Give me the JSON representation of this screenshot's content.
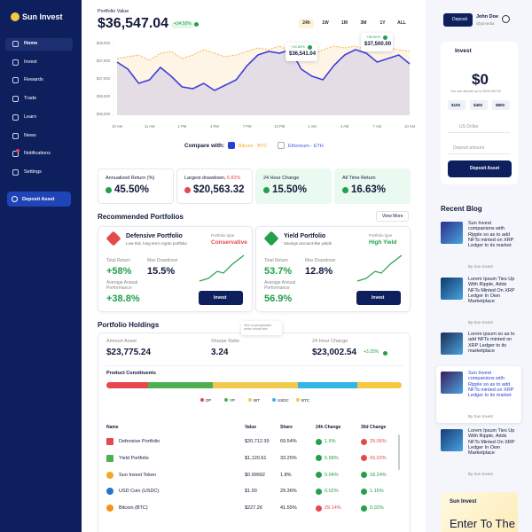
{
  "sidebar": {
    "logo": "Sun Invest",
    "nav": [
      "Home",
      "Invest",
      "Rewards",
      "Trade",
      "Learn",
      "News",
      "Notifications",
      "Settings"
    ],
    "active": 0,
    "deposit_button": "Deposit Asset"
  },
  "header": {
    "label": "Portfolio Value",
    "value": "$36,547.04",
    "change": "+34.50%",
    "ranges": [
      "24h",
      "1W",
      "1M",
      "3M",
      "1Y",
      "ALL"
    ],
    "active_range": 0
  },
  "portfolio_chart": {
    "type": "line",
    "categories": [
      "10 AM",
      null,
      null,
      "11 AM",
      null,
      null,
      "1 PM",
      null,
      null,
      "4 PM",
      null,
      null,
      "7 PM",
      null,
      null,
      "10 PM",
      null,
      null,
      "1 AM",
      null,
      null,
      "4 AM",
      null,
      null,
      "7 AM",
      null,
      null,
      "10 AM"
    ],
    "series": [
      {
        "color": "#f5b547",
        "values": [
          37600,
          37650,
          37700,
          37550,
          37750,
          37800,
          37600,
          37700,
          37850,
          37750,
          37650,
          37700,
          37800,
          37900,
          37850,
          37950,
          37800,
          37750,
          37700,
          37850,
          37950,
          37900,
          37950,
          37850,
          37800,
          37900,
          37850,
          37800
        ]
      },
      {
        "color": "#3d3fd9",
        "values": [
          37500,
          37300,
          36900,
          37000,
          37350,
          37100,
          36800,
          36750,
          36900,
          36700,
          36850,
          37000,
          37400,
          37700,
          37800,
          37750,
          37850,
          37300,
          37100,
          37000,
          37400,
          37700,
          37850,
          37750,
          37500,
          37600,
          37700,
          37450
        ]
      }
    ],
    "ylim": [
      36000,
      38000
    ],
    "yticks": [
      {
        "value": 36000,
        "label": "$36,000"
      },
      {
        "value": 36500,
        "label": "$36,500"
      },
      {
        "value": 37000,
        "label": "$37,000"
      },
      {
        "value": 37500,
        "label": "$37,500"
      },
      {
        "value": 38000,
        "label": "$38,000"
      }
    ],
    "annotations": [
      {
        "change": "+24.80%",
        "value": "$36,541.04"
      },
      {
        "change": "+36.50%",
        "value": "$37,500.00"
      }
    ]
  },
  "compare": {
    "label": "Compare with:",
    "options": [
      {
        "label": "Bitcoin - BTC",
        "checked": true,
        "color": "#f5a623"
      },
      {
        "label": "Ethereum - ETH",
        "checked": false,
        "color": "#3d5bd9"
      }
    ]
  },
  "stats": [
    {
      "label": "Annualized Return (%)",
      "value": "45.50%",
      "trend": "up"
    },
    {
      "label": "Largest drawdown, ",
      "highlight": "-5.82%",
      "value": "$20,563.32",
      "trend": "down"
    },
    {
      "label": "24 Hour Change",
      "value": "15.50%",
      "trend": "up"
    },
    {
      "label": "All Time Return",
      "value": "16.63%",
      "trend": "up"
    }
  ],
  "recommended": {
    "title": "Recommended Portfolios",
    "view_more": "View More",
    "cards": [
      {
        "name": "Defensive Portfolio",
        "description": "Low-risk, long term crypto portfolio",
        "type_label": "Portfolio type",
        "type": "Conservative",
        "type_color": "#e5484d",
        "total_return_label": "Total Return",
        "total_return": "+58%",
        "drawdown_label": "Max Drawdown",
        "drawdown": "15.5%",
        "average_label": "Average Annual Performance",
        "average": "+38.8%",
        "button": "Invest"
      },
      {
        "name": "Yield Portfolio",
        "description": "Savings account-like yields",
        "type_label": "Portfolio type",
        "type": "High Yield",
        "type_color": "#22a04b",
        "total_return_label": "Total Return",
        "total_return": "53.7%",
        "drawdown_label": "Max Drawdown",
        "drawdown": "12.8%",
        "average_label": "Average Annual Performance",
        "average": "56.9%",
        "button": "Invest"
      }
    ]
  },
  "holdings": {
    "title": "Portfolio Holdings",
    "stats": [
      {
        "label": "Amount Asset",
        "value": "$23,775.24"
      },
      {
        "label": "Sharpe Ratio",
        "value": "3.24",
        "tooltip": "Sed ut perspiciatis unde omnis iste"
      },
      {
        "label": "24 Hour Change",
        "value": "$23,002.54",
        "change": "+3.25%"
      }
    ],
    "constituents": {
      "title": "Product Constituents",
      "segments": [
        {
          "name": "DP",
          "color": "#e5484d",
          "share": 14
        },
        {
          "name": "YP",
          "color": "#4caf50",
          "share": 22
        },
        {
          "name": "BIT",
          "color": "#f2c94c",
          "share": 29
        },
        {
          "name": "USDC",
          "color": "#33b5e5",
          "share": 20
        },
        {
          "name": "BTC",
          "color": "#f5c842",
          "share": 15
        }
      ]
    },
    "table": {
      "columns": [
        "Name",
        "Value",
        "Share",
        "24h Change",
        "30d Change"
      ],
      "rows": [
        {
          "name": "Defensive Portfolio",
          "icon_color": "#e5484d",
          "value": "$20,712.39",
          "share": "69.54%",
          "d24": {
            "text": "1.6%",
            "dir": "up"
          },
          "d30": {
            "text": "29.06%",
            "dir": "down"
          }
        },
        {
          "name": "Yield Portfolio",
          "icon_color": "#4caf50",
          "value": "$1,120.61",
          "share": "33.25%",
          "d24": {
            "text": "5.58%",
            "dir": "up"
          },
          "d30": {
            "text": "43.02%",
            "dir": "down"
          }
        },
        {
          "name": "Sun Invest Token",
          "icon_color": "#f5a623",
          "value": "$0.99992",
          "share": "1.8%",
          "d24": {
            "text": "0.04%",
            "dir": "up"
          },
          "d30": {
            "text": "18.24%",
            "dir": "up"
          }
        },
        {
          "name": "USD Coin (USDC)",
          "icon_color": "#2775ca",
          "value": "$1.00",
          "share": "29.36%",
          "d24": {
            "text": "0.02%",
            "dir": "up"
          },
          "d30": {
            "text": "1.16%",
            "dir": "up"
          }
        },
        {
          "name": "Bitcoin (BTC)",
          "icon_color": "#f7931a",
          "value": "$227.26",
          "share": "41.55%",
          "d24": {
            "text": "29.14%",
            "dir": "down"
          },
          "d30": {
            "text": "0.02%",
            "dir": "up"
          }
        }
      ]
    }
  },
  "account": {
    "deposit_button": "Deposit",
    "name": "John Doe",
    "handle": "@jumedia"
  },
  "invest_card": {
    "title": "Invest",
    "amount": "$0",
    "note": "You can deposit up to $100,000.00",
    "presets": [
      "$100",
      "$400",
      "$800"
    ],
    "currency": "US Dollar",
    "placeholder": "Deposit amount",
    "button": "Deposit Asset"
  },
  "blog": {
    "title": "Recent Blog",
    "items": [
      {
        "title": "Sun Invest companions with Ripple so as to add NFTs minted on XRP Ledger to its market",
        "by": "By Sun Invest",
        "highlight": false
      },
      {
        "title": "Lorem Ipsum Ties Up With Ripple, Adds NFTs Minted On XRP Ledger In Own Marketplace",
        "by": "By Sun Invest",
        "highlight": false
      },
      {
        "title": "Lorem ipsum so as to add NFTs minted on XRP Ledger to its marketplace",
        "by": "By Sun Invest",
        "highlight": false
      },
      {
        "title": "Sun Invest companions with Ripple so as to add NFTs minted on XRP Ledger to its market",
        "by": "By Sun Invest",
        "highlight": true
      },
      {
        "title": "Lorem Ipsum Ties Up With Ripple, Adds NFTs Minted On XRP Ledger In Own Marketplace",
        "by": "By Sun Invest",
        "highlight": false
      }
    ]
  },
  "promo": {
    "brand": "Sun Invest",
    "headline": "Enter To The World"
  }
}
